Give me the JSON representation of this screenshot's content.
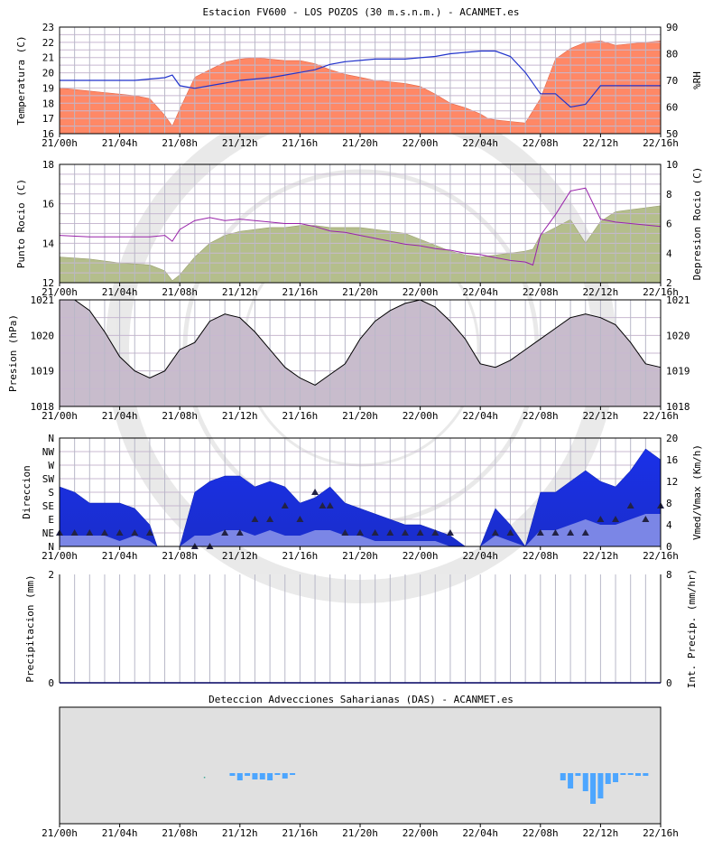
{
  "title": "Estacion FV600 - LOS POZOS (30 m.s.n.m.) - ACANMET.es",
  "time_labels": [
    "21/00h",
    "21/04h",
    "21/08h",
    "21/12h",
    "21/16h",
    "21/20h",
    "22/00h",
    "22/04h",
    "22/08h",
    "22/12h",
    "22/16h"
  ],
  "colors": {
    "temperature": "#ff8866",
    "humidity": "#2233cc",
    "dewpoint": "#b4be8c",
    "depression": "#9922aa",
    "pressure": "#c8bccc",
    "wind_max": "#1a2ee6",
    "wind_med": "#7b86e6",
    "direction": "#222244",
    "das": "#4da6ff",
    "das_bg": "#e0e0e0"
  },
  "chart_data": [
    {
      "type": "area",
      "name": "temperature-humidity",
      "ylabel": "Temperatura (C)",
      "y2label": "%RH",
      "ylim": [
        16,
        23
      ],
      "y2lim": [
        50,
        90
      ],
      "yticks": [
        "16",
        "17",
        "18",
        "19",
        "20",
        "21",
        "22",
        "23"
      ],
      "y2ticks": [
        "50",
        "60",
        "70",
        "80",
        "90"
      ],
      "x": [
        0,
        1,
        2,
        3,
        4,
        5,
        6,
        7,
        7.5,
        8,
        9,
        10,
        11,
        12,
        13,
        14,
        15,
        16,
        17,
        18,
        19,
        20,
        21,
        22,
        23,
        24,
        25,
        26,
        27,
        28,
        28.5,
        29,
        30,
        31,
        32,
        33,
        34,
        35,
        36,
        37,
        38,
        39,
        40
      ],
      "series": [
        {
          "name": "Temperatura",
          "values": [
            19,
            18.9,
            18.8,
            18.7,
            18.6,
            18.5,
            18.3,
            17.2,
            16.5,
            17.6,
            19.7,
            20.2,
            20.7,
            20.9,
            21,
            20.9,
            20.8,
            20.8,
            20.6,
            20.2,
            19.9,
            19.7,
            19.5,
            19.4,
            19.3,
            19.1,
            18.6,
            18,
            17.7,
            17.3,
            17,
            16.9,
            16.8,
            16.7,
            18.3,
            20.9,
            21.6,
            22,
            22.1,
            21.8,
            21.9,
            22,
            22.1
          ]
        },
        {
          "name": "%RH",
          "values": [
            70,
            70,
            70,
            70,
            70,
            70,
            70.5,
            71,
            72,
            68,
            67,
            68,
            69,
            70,
            70.5,
            71,
            72,
            73,
            74,
            76,
            77,
            77.5,
            78,
            78,
            78,
            78.5,
            79,
            80,
            80.5,
            81,
            81,
            81,
            79,
            73,
            65,
            65,
            60,
            61,
            68,
            68,
            68,
            68,
            68
          ]
        }
      ]
    },
    {
      "type": "area",
      "name": "dewpoint-depression",
      "ylabel": "Punto Rocio (C)",
      "y2label": "Depresion Rocio (C)",
      "ylim": [
        12,
        18
      ],
      "y2lim": [
        2,
        10
      ],
      "yticks": [
        "12",
        "14",
        "16",
        "18"
      ],
      "y2ticks": [
        "2",
        "4",
        "6",
        "8",
        "10"
      ],
      "x": [
        0,
        2,
        4,
        6,
        7,
        7.5,
        8,
        9,
        10,
        11,
        12,
        13,
        14,
        15,
        16,
        17,
        18,
        19,
        20,
        21,
        22,
        23,
        24,
        25,
        26,
        27,
        28,
        29,
        30,
        31,
        31.5,
        32,
        33,
        34,
        35,
        36,
        37,
        38,
        39,
        40
      ],
      "series": [
        {
          "name": "Punto Rocio",
          "values": [
            13.3,
            13.2,
            13,
            12.9,
            12.6,
            12.1,
            12.4,
            13.3,
            14,
            14.4,
            14.6,
            14.7,
            14.8,
            14.8,
            14.9,
            14.9,
            14.8,
            14.8,
            14.8,
            14.7,
            14.6,
            14.5,
            14.2,
            13.9,
            13.6,
            13.4,
            13.3,
            13.4,
            13.5,
            13.6,
            13.7,
            14.4,
            14.8,
            15.2,
            14,
            15.1,
            15.6,
            15.7,
            15.8,
            15.9
          ]
        },
        {
          "name": "Depresion Rocio",
          "values": [
            5.2,
            5.1,
            5.1,
            5.1,
            5.2,
            4.8,
            5.6,
            6.2,
            6.4,
            6.2,
            6.3,
            6.2,
            6.1,
            6,
            6,
            5.8,
            5.5,
            5.4,
            5.2,
            5,
            4.8,
            4.6,
            4.5,
            4.3,
            4.2,
            4,
            3.9,
            3.7,
            3.5,
            3.4,
            3.2,
            5.2,
            6.6,
            8.2,
            8.4,
            6.3,
            6.1,
            6,
            5.9,
            5.8
          ]
        }
      ]
    },
    {
      "type": "area",
      "name": "pressure",
      "ylabel": "Presion (hPa)",
      "ylim": [
        1018,
        1021
      ],
      "yticks": [
        "1018",
        "1019",
        "1020",
        "1021"
      ],
      "x": [
        0,
        1,
        2,
        3,
        4,
        5,
        6,
        7,
        8,
        9,
        10,
        11,
        12,
        13,
        14,
        15,
        16,
        17,
        18,
        19,
        20,
        21,
        22,
        23,
        24,
        25,
        26,
        27,
        28,
        29,
        30,
        31,
        32,
        33,
        34,
        35,
        36,
        37,
        38,
        39,
        40
      ],
      "series": [
        {
          "name": "Presion",
          "values": [
            1021,
            1021,
            1020.7,
            1020.1,
            1019.4,
            1019,
            1018.8,
            1019,
            1019.6,
            1019.8,
            1020.4,
            1020.6,
            1020.5,
            1020.1,
            1019.6,
            1019.1,
            1018.8,
            1018.6,
            1018.9,
            1019.2,
            1019.9,
            1020.4,
            1020.7,
            1020.9,
            1021,
            1020.8,
            1020.4,
            1019.9,
            1019.2,
            1019.1,
            1019.3,
            1019.6,
            1019.9,
            1020.2,
            1020.5,
            1020.6,
            1020.5,
            1020.3,
            1019.8,
            1019.2,
            1019.1
          ]
        }
      ]
    },
    {
      "type": "area",
      "name": "wind",
      "ylabel": "Direccion",
      "y2label": "Vmed/Vmax (Km/h)",
      "yticks": [
        "N",
        "NE",
        "E",
        "SE",
        "S",
        "SW",
        "W",
        "NW",
        "N"
      ],
      "y2lim": [
        0,
        20
      ],
      "y2ticks": [
        "0",
        "4",
        "8",
        "12",
        "16",
        "20"
      ],
      "x": [
        0,
        1,
        2,
        3,
        4,
        5,
        6,
        6.5,
        7,
        8,
        9,
        10,
        11,
        12,
        13,
        14,
        15,
        16,
        17,
        17.5,
        18,
        19,
        20,
        21,
        22,
        23,
        24,
        25,
        26,
        27,
        28,
        29,
        30,
        31,
        32,
        33,
        34,
        35,
        36,
        37,
        38,
        39,
        40
      ],
      "series": [
        {
          "name": "Vmax",
          "values": [
            11,
            10,
            8,
            8,
            8,
            7,
            4,
            0,
            0,
            0,
            10,
            12,
            13,
            13,
            11,
            12,
            11,
            8,
            9,
            10,
            11,
            8,
            7,
            6,
            5,
            4,
            4,
            3,
            2,
            0,
            0,
            7,
            4,
            0,
            10,
            10,
            12,
            14,
            12,
            11,
            14,
            18,
            16
          ]
        },
        {
          "name": "Vmed",
          "values": [
            2,
            2,
            2,
            2,
            1,
            2,
            1,
            0,
            0,
            0,
            2,
            2,
            3,
            3,
            2,
            3,
            2,
            2,
            3,
            3,
            3,
            2,
            2,
            1,
            1,
            1,
            1,
            1,
            0,
            0,
            0,
            2,
            1,
            0,
            3,
            3,
            4,
            5,
            4,
            4,
            5,
            6,
            6
          ]
        },
        {
          "name": "Direccion",
          "values": [
            1,
            1,
            1,
            1,
            1,
            1,
            1,
            1,
            1,
            1,
            0,
            0,
            1,
            1,
            2,
            2,
            3,
            2,
            4,
            3,
            3,
            1,
            1,
            1,
            1,
            1,
            1,
            1,
            1,
            1,
            1,
            1,
            1,
            1,
            1,
            1,
            1,
            1,
            2,
            2,
            3,
            2,
            3
          ]
        }
      ]
    },
    {
      "type": "bar",
      "name": "precipitation",
      "ylabel": "Precipitacion (mm)",
      "y2label": "Int. Precip. (mm/hr)",
      "ylim": [
        0,
        2
      ],
      "y2lim": [
        0,
        8
      ],
      "yticks": [
        "0",
        "2"
      ],
      "y2ticks": [
        "0",
        "8"
      ],
      "values": []
    },
    {
      "type": "area",
      "name": "das",
      "title": "Deteccion Advecciones Saharianas (DAS) - ACANMET.es",
      "x": [
        11.5,
        12,
        12.5,
        13,
        13.5,
        14,
        14.5,
        15,
        15.5,
        33.5,
        34,
        34.5,
        35,
        35.5,
        36,
        36.5,
        37,
        37.5,
        38,
        38.5,
        39
      ],
      "values": [
        0.3,
        0.8,
        0.3,
        0.7,
        0.7,
        0.8,
        0.2,
        0.6,
        0.2,
        0.8,
        1.7,
        0.3,
        2,
        3.4,
        2.8,
        1.2,
        1,
        0.2,
        0.2,
        0.3,
        0.3
      ]
    }
  ]
}
